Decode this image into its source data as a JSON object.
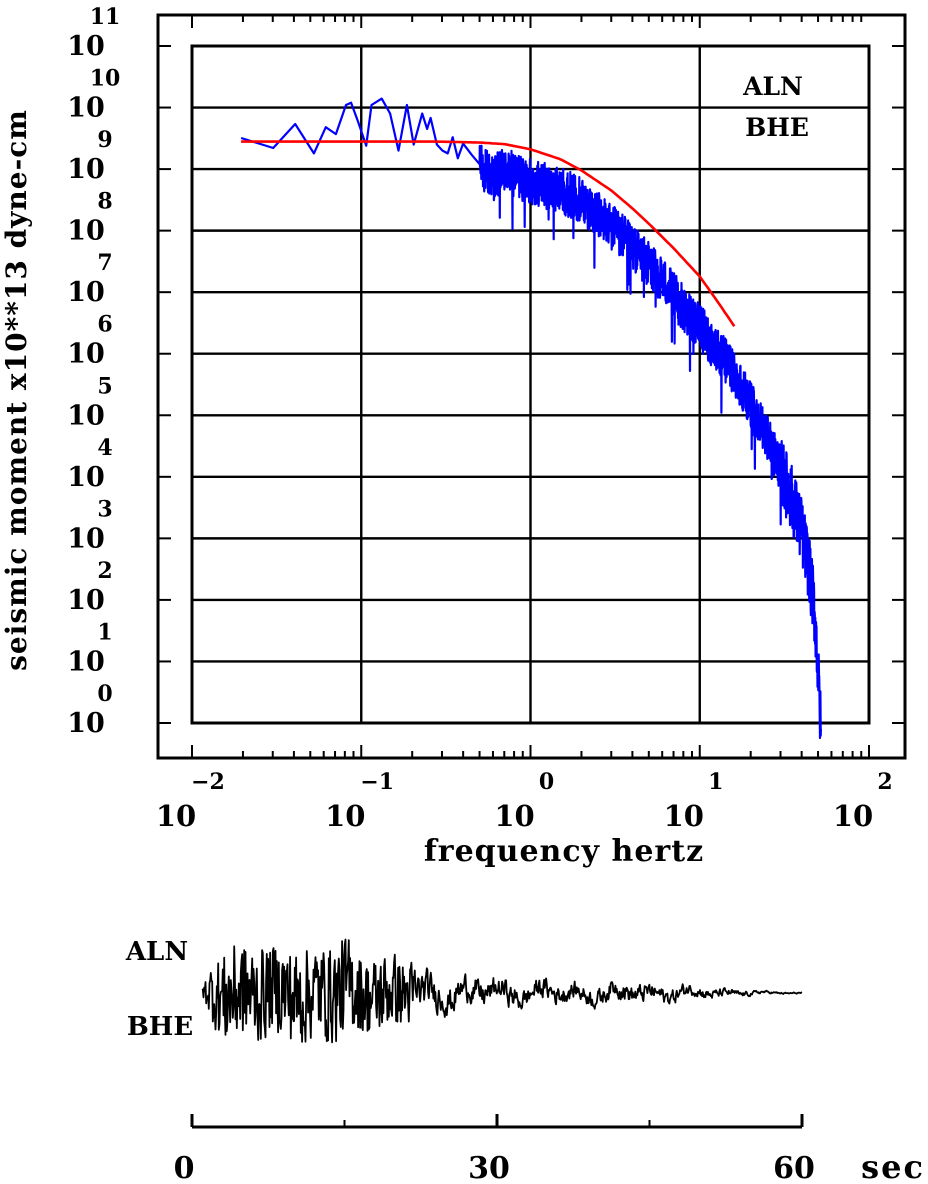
{
  "chart_data": [
    {
      "type": "line",
      "xlabel": "frequency  hertz",
      "ylabel": "seismic moment x10**13 dyne-cm",
      "x_scale": "log",
      "y_scale": "log",
      "xlim": [
        0.01,
        100
      ],
      "ylim": [
        1,
        100000000000
      ],
      "x_ticks": [
        {
          "base": "10",
          "exp": "−2"
        },
        {
          "base": "10",
          "exp": "−1"
        },
        {
          "base": "10",
          "exp": "0"
        },
        {
          "base": "10",
          "exp": "1"
        },
        {
          "base": "10",
          "exp": "2"
        }
      ],
      "y_ticks": [
        {
          "base": "10",
          "exp": "0"
        },
        {
          "base": "10",
          "exp": "1"
        },
        {
          "base": "10",
          "exp": "2"
        },
        {
          "base": "10",
          "exp": "3"
        },
        {
          "base": "10",
          "exp": "4"
        },
        {
          "base": "10",
          "exp": "5"
        },
        {
          "base": "10",
          "exp": "6"
        },
        {
          "base": "10",
          "exp": "7"
        },
        {
          "base": "10",
          "exp": "8"
        },
        {
          "base": "10",
          "exp": "9"
        },
        {
          "base": "10",
          "exp": "10"
        },
        {
          "base": "10",
          "exp": "11"
        }
      ],
      "grid": true,
      "annotations": [
        "ALN",
        "BHE"
      ],
      "colors": {
        "observed": "#0000ff",
        "model": "#ff0000",
        "grid": "#000000"
      },
      "series": [
        {
          "color": "#0000ff",
          "noisy_above_freq": 0.5,
          "x": [
            0.0195,
            0.0302,
            0.0407,
            0.0525,
            0.0617,
            0.0708,
            0.0813,
            0.0871,
            0.0955,
            0.107,
            0.115,
            0.132,
            0.148,
            0.166,
            0.186,
            0.204,
            0.229,
            0.245,
            0.257,
            0.28,
            0.302,
            0.324,
            0.347,
            0.372,
            0.4,
            0.45,
            0.5,
            0.6,
            0.7,
            0.8,
            1.0,
            1.2,
            1.5,
            2.0,
            2.5,
            3.0,
            4.0,
            5.0,
            6.0,
            7.0,
            8.0,
            10.0,
            12.0,
            15.0,
            18.0,
            22.0,
            26.0,
            30.0,
            35.0,
            40.0,
            45.0,
            48.0,
            50.0,
            52.0
          ],
          "values": [
            3200000000,
            2200000000,
            5400000000,
            1800000000,
            4800000000,
            3700000000,
            11000000000,
            12000000000,
            6000000000,
            2400000000,
            11000000000,
            14000000000,
            8000000000,
            2000000000,
            11000000000,
            2500000000,
            8000000000,
            4500000000,
            6800000000,
            2500000000,
            2000000000,
            1800000000,
            3300000000,
            1500000000,
            2600000000,
            1700000000,
            1200000000,
            800000000,
            1000000000,
            900000000,
            700000000,
            600000000,
            500000000,
            350000000,
            200000000,
            130000000,
            60000000,
            30000000,
            18000000,
            10000000,
            6000000,
            3000000,
            1500000,
            700000,
            300000,
            100000,
            40000,
            15000,
            5000,
            1500,
            300,
            60,
            8,
            0.8
          ]
        },
        {
          "color": "#ff0000",
          "x": [
            0.0195,
            0.05,
            0.1,
            0.2,
            0.3,
            0.5,
            0.7,
            1.0,
            1.5,
            2.0,
            3.0,
            4.0,
            5.0,
            7.0,
            10.0,
            13.0,
            16.0
          ],
          "values": [
            2800000000,
            2800000000,
            2800000000,
            2800000000,
            2790000000,
            2700000000,
            2550000000,
            2100000000,
            1450000000,
            950000000,
            450000000,
            230000000,
            130000000,
            52000000,
            18000000,
            6500000,
            2800000
          ]
        }
      ]
    },
    {
      "type": "line",
      "annotations": [
        "ALN",
        "BHE"
      ],
      "x_unit": "sec",
      "xlim": [
        0,
        60
      ],
      "x_tick_labels": [
        "0",
        "30",
        "60"
      ],
      "x_minor_ticks": [
        15,
        45
      ],
      "series": [
        {
          "color": "#000000",
          "onset_sec": 1.0,
          "end_sec": 60.0,
          "envelope_t": [
            0,
            1,
            2,
            3,
            4,
            6,
            8,
            10,
            12,
            14,
            15,
            16,
            17,
            19,
            21,
            24,
            27,
            30,
            33,
            36,
            39,
            42,
            45,
            48,
            51,
            54,
            57,
            60
          ],
          "envelope_amp": [
            0.02,
            0.1,
            0.6,
            0.9,
            1.0,
            0.95,
            0.85,
            1.0,
            0.9,
            0.95,
            1.0,
            0.85,
            0.8,
            0.75,
            0.65,
            0.5,
            0.4,
            0.35,
            0.3,
            0.3,
            0.25,
            0.3,
            0.25,
            0.2,
            0.15,
            0.08,
            0.03,
            0.02
          ]
        }
      ]
    }
  ],
  "labels": {
    "station": "ALN",
    "component": "BHE",
    "seismogram_station": "ALN",
    "seismogram_component": "BHE",
    "time_unit": "sec"
  }
}
